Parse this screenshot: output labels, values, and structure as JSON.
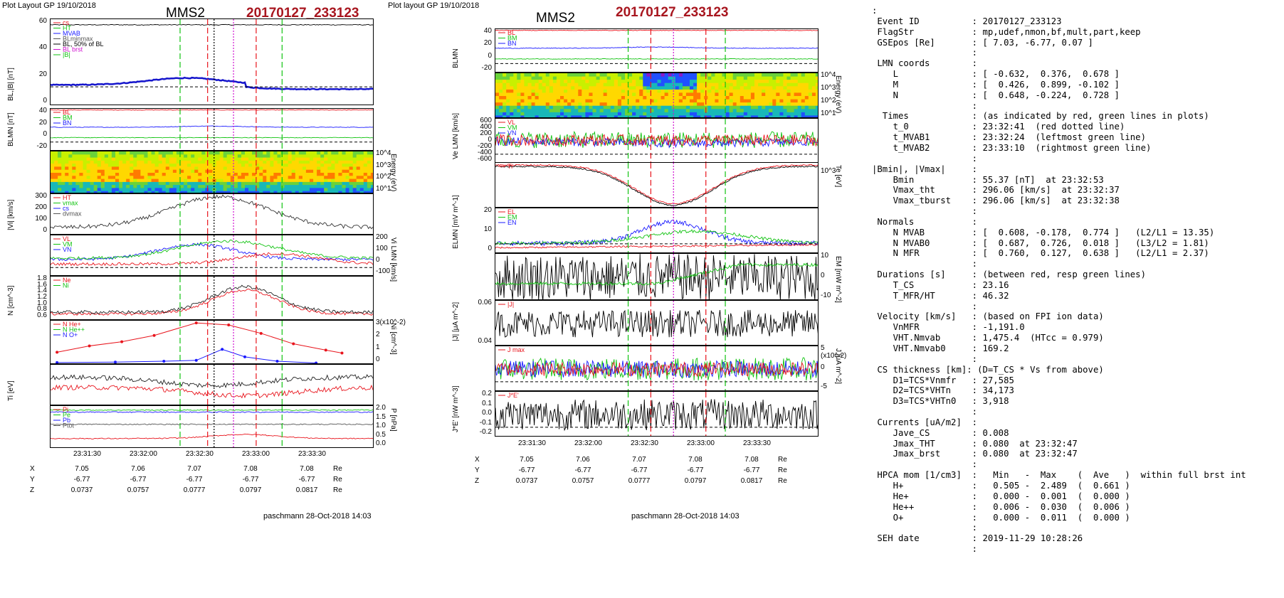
{
  "left": {
    "header": "Plot Layout GP 19/10/2018",
    "spacecraft": "MMS2",
    "event": "20170127_233123",
    "footer": "paschmann 28-Oct-2018 14:03",
    "panels": [
      {
        "name": "panel-b",
        "ylabel": "BL,|B| [nT]",
        "yticks": [
          "60",
          "40",
          "20",
          "0"
        ],
        "legend": [
          "cs",
          "HT",
          "MVAB",
          "BLminmax",
          "BL, 50% of BL",
          "BL brst",
          "|B|"
        ]
      },
      {
        "name": "panel-blmn",
        "ylabel": "BLMN [nT]",
        "yticks": [
          "40",
          "20",
          "0",
          "-20"
        ],
        "legend": [
          "BL",
          "BM",
          "BN"
        ]
      },
      {
        "name": "panel-spec",
        "ylabel": "Energy (eV)",
        "yticks": [
          "10^4",
          "10^3",
          "10^2",
          "10^1"
        ]
      },
      {
        "name": "panel-vi",
        "ylabel": "|Vi| [km/s]",
        "yticks": [
          "300",
          "200",
          "100",
          "0"
        ],
        "legend": [
          "HT",
          "vmax",
          "cs",
          "dvmax"
        ]
      },
      {
        "name": "panel-vilmn",
        "ylabel": "Vi LMN [km/s]",
        "yticks": [
          "200",
          "100",
          "0",
          "-100"
        ],
        "legend": [
          "VL",
          "VM",
          "VN"
        ]
      },
      {
        "name": "panel-n",
        "ylabel": "N [cm^-3]",
        "yticks": [
          "1.8",
          "1.6",
          "1.4",
          "1.2",
          "1.0",
          "0.8",
          "0.6"
        ],
        "legend": [
          "Ne",
          "Ni"
        ]
      },
      {
        "name": "panel-ni",
        "ylabel": "Ni [cm^-3]",
        "yticks": [
          "3(x10^-2)",
          "2",
          "1",
          "0"
        ],
        "legend": [
          "N  He+",
          "N  He++",
          "N  O+"
        ]
      },
      {
        "name": "panel-ti",
        "ylabel": "Ti [eV]",
        "yticks": []
      },
      {
        "name": "panel-p",
        "ylabel": "P [nPa]",
        "yticks": [
          "2.0",
          "1.5",
          "1.0",
          "0.5",
          "0.0"
        ],
        "legend": [
          "Pi",
          "Pe",
          "Pb",
          "Ptot"
        ]
      }
    ],
    "time_ticks": [
      "23:31:30",
      "23:32:00",
      "23:32:30",
      "23:33:00",
      "23:33:30"
    ],
    "pos_table": {
      "labels": [
        "X",
        "Y",
        "Z"
      ],
      "unit": "Re",
      "rows": [
        [
          "7.05",
          "7.06",
          "7.07",
          "7.08",
          "7.08"
        ],
        [
          "-6.77",
          "-6.77",
          "-6.77",
          "-6.77",
          "-6.77"
        ],
        [
          "0.0737",
          "0.0757",
          "0.0777",
          "0.0797",
          "0.0817"
        ]
      ]
    }
  },
  "middle": {
    "header": "Plot layout GP 19/10/2018",
    "spacecraft": "MMS2",
    "event": "20170127_233123",
    "footer": "paschmann 28-Oct-2018 14:03",
    "panels": [
      {
        "name": "panel-blmn",
        "ylabel": "BLMN",
        "yticks": [
          "40",
          "20",
          "0",
          "-20"
        ],
        "legend": [
          "BL",
          "BM",
          "BN"
        ]
      },
      {
        "name": "panel-spec",
        "ylabel": "Energy (eV)",
        "yticks": [
          "10^4",
          "10^3",
          "10^2",
          "10^1"
        ]
      },
      {
        "name": "panel-ve",
        "ylabel": "Ve LMN [km/s]",
        "yticks": [
          "600",
          "400",
          "200",
          "0",
          "-200",
          "-400",
          "-600"
        ],
        "legend": [
          "VL",
          "VM",
          "VN"
        ]
      },
      {
        "name": "panel-te",
        "ylabel": "Te [eV]",
        "yticks": [
          "10^3"
        ],
        "legend": [
          "Ti"
        ]
      },
      {
        "name": "panel-elmn",
        "ylabel": "ELMN [mV m^-1]",
        "yticks": [
          "20",
          "10",
          "0"
        ],
        "legend": [
          "EL",
          "EM",
          "EN"
        ]
      },
      {
        "name": "panel-em",
        "ylabel": "EM [mW m^-2]",
        "yticks": [
          "10",
          "0",
          "-10"
        ]
      },
      {
        "name": "panel-j",
        "ylabel": "|J| [μA m^-2]",
        "yticks": [
          "0.06",
          "0.04"
        ],
        "legend": [
          "|J|"
        ]
      },
      {
        "name": "panel-jlmn",
        "ylabel": "J [μA m^-2]",
        "yticks": [
          "5 (x10^-2)",
          "0",
          "-5"
        ],
        "legend": [
          "J  max"
        ]
      },
      {
        "name": "panel-je",
        "ylabel": "J*E' [nW m^-3]",
        "yticks": [
          "0.2",
          "0.1",
          "0.0",
          "-0.1",
          "-0.2"
        ],
        "legend": [
          "J*E'"
        ]
      }
    ],
    "time_ticks": [
      "23:31:30",
      "23:32:00",
      "23:32:30",
      "23:33:00",
      "23:33:30"
    ],
    "pos_table": {
      "labels": [
        "X",
        "Y",
        "Z"
      ],
      "unit": "Re",
      "rows": [
        [
          "7.05",
          "7.06",
          "7.07",
          "7.08",
          "7.08"
        ],
        [
          "-6.77",
          "-6.77",
          "-6.77",
          "-6.77",
          "-6.77"
        ],
        [
          "0.0737",
          "0.0757",
          "0.0777",
          "0.0797",
          "0.0817"
        ]
      ]
    }
  },
  "info_lines": [
    ":",
    " Event ID          : 20170127_233123",
    " FlagStr           : mp,udef,nmon,bf,mult,part,keep",
    " GSEpos [Re]       : [ 7.03, -6.77, 0.07 ]",
    "                   :",
    " LMN coords        :",
    "    L              : [ -0.632,  0.376,  0.678 ]",
    "    M              : [  0.426,  0.899, -0.102 ]",
    "    N              : [  0.648, -0.224,  0.728 ]",
    "                   :",
    "  Times            : (as indicated by red, green lines in plots)",
    "    t_0            : 23:32:41  (red dotted line)",
    "    t_MVAB1        : 23:32:24  (leftmost green line)",
    "    t_MVAB2        : 23:33:10  (rightmost green line)",
    "                   :",
    "|Bmin|, |Vmax|     :",
    "    Bmin           : 55.37 [nT]  at 23:32:53",
    "    Vmax_tht       : 296.06 [km/s]  at 23:32:37",
    "    Vmax_tburst    : 296.06 [km/s]  at 23:32:38",
    "                   :",
    " Normals           :",
    "    N MVAB         : [  0.608, -0.178,  0.774 ]   (L2/L1 = 13.35)",
    "    N MVAB0        : [  0.687,  0.726,  0.018 ]   (L3/L2 = 1.81)",
    "    N MFR          : [  0.760,  0.127,  0.638 ]   (L2/L1 = 2.37)",
    "                   :",
    " Durations [s]     : (between red, resp green lines)",
    "    T_CS           : 23.16",
    "    T_MFR/HT       : 46.32",
    "                   :",
    " Velocity [km/s]   : (based on FPI ion data)",
    "    VnMFR          : -1,191.0",
    "    VHT.Nmvab      : 1,475.4  (HTcc = 0.979)",
    "    VHT.Nmvab0     : 169.2",
    "                   :",
    " CS thickness [km]: (D=T_CS * Vs from above)",
    "    D1=TCS*Vnmfr   : 27,585",
    "    D2=TCS*VHTn    : 34,173",
    "    D3=TCS*VHTn0   : 3,918",
    "                   :",
    " Currents [uA/m2]  :",
    "    Jave_CS        : 0.008",
    "    Jmax_THT       : 0.080  at 23:32:47",
    "    Jmax_brst      : 0.080  at 23:32:47",
    "                   :",
    " HPCA mom [1/cm3]  :   Min   -  Max    (  Ave   )  within full brst int",
    "    H+             :   0.505 -  2.489  (  0.661 )",
    "    He+            :   0.000 -  0.001  (  0.000 )",
    "    He++           :   0.006 -  0.030  (  0.006 )",
    "    O+             :   0.000 -  0.011  (  0.000 )",
    "                   :",
    " SEH date          : 2019-11-29 10:28:26",
    "                   :"
  ],
  "colors": {
    "event": "#a8161f",
    "red": "#e8141c",
    "green": "#11c311",
    "blue": "#1a1aff",
    "black": "#000000",
    "magenta": "#d010d0"
  }
}
